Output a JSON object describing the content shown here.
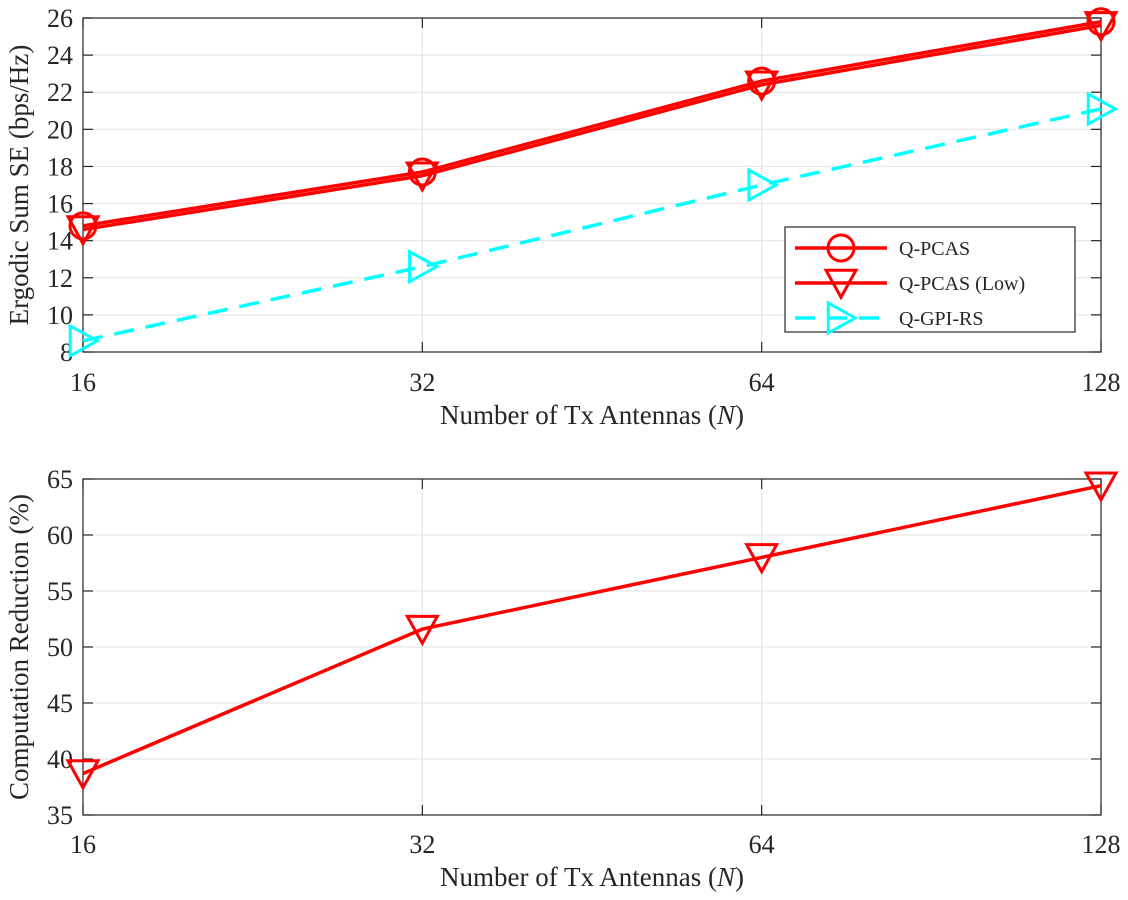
{
  "chart_data": [
    {
      "type": "line",
      "x": [
        16,
        32,
        64,
        128
      ],
      "xticks": [
        "16",
        "32",
        "64",
        "128"
      ],
      "xlabel": "Number of Tx Antennas (",
      "xlabel_var": "N",
      "xlabel_close": ")",
      "ylabel": "Ergodic Sum SE (bps/Hz)",
      "ylim": [
        8,
        26
      ],
      "yticks": [
        8,
        10,
        12,
        14,
        16,
        18,
        20,
        22,
        24,
        26
      ],
      "xscale": "log2",
      "grid": true,
      "legend_position": "bottom-right",
      "series": [
        {
          "name": "Q-PCAS",
          "values": [
            14.8,
            17.7,
            22.6,
            25.8
          ],
          "color": "#ff0000",
          "line": "solid",
          "marker": "circle"
        },
        {
          "name": "Q-PCAS (Low)",
          "values": [
            14.6,
            17.5,
            22.4,
            25.6
          ],
          "color": "#ff0000",
          "line": "solid",
          "marker": "triangle-down"
        },
        {
          "name": "Q-GPI-RS",
          "values": [
            8.6,
            12.6,
            17.0,
            21.1
          ],
          "color": "#00ffff",
          "line": "dashed",
          "marker": "triangle-right"
        }
      ]
    },
    {
      "type": "line",
      "x": [
        16,
        32,
        64,
        128
      ],
      "xticks": [
        "16",
        "32",
        "64",
        "128"
      ],
      "xlabel": "Number of Tx Antennas (",
      "xlabel_var": "N",
      "xlabel_close": ")",
      "ylabel": "Computation Reduction (%)",
      "ylim": [
        35,
        65
      ],
      "yticks": [
        35,
        40,
        45,
        50,
        55,
        60,
        65
      ],
      "xscale": "log2",
      "grid": true,
      "series": [
        {
          "name": "",
          "values": [
            38.7,
            51.6,
            58.0,
            64.4
          ],
          "color": "#ff0000",
          "line": "solid",
          "marker": "triangle-down"
        }
      ]
    }
  ]
}
